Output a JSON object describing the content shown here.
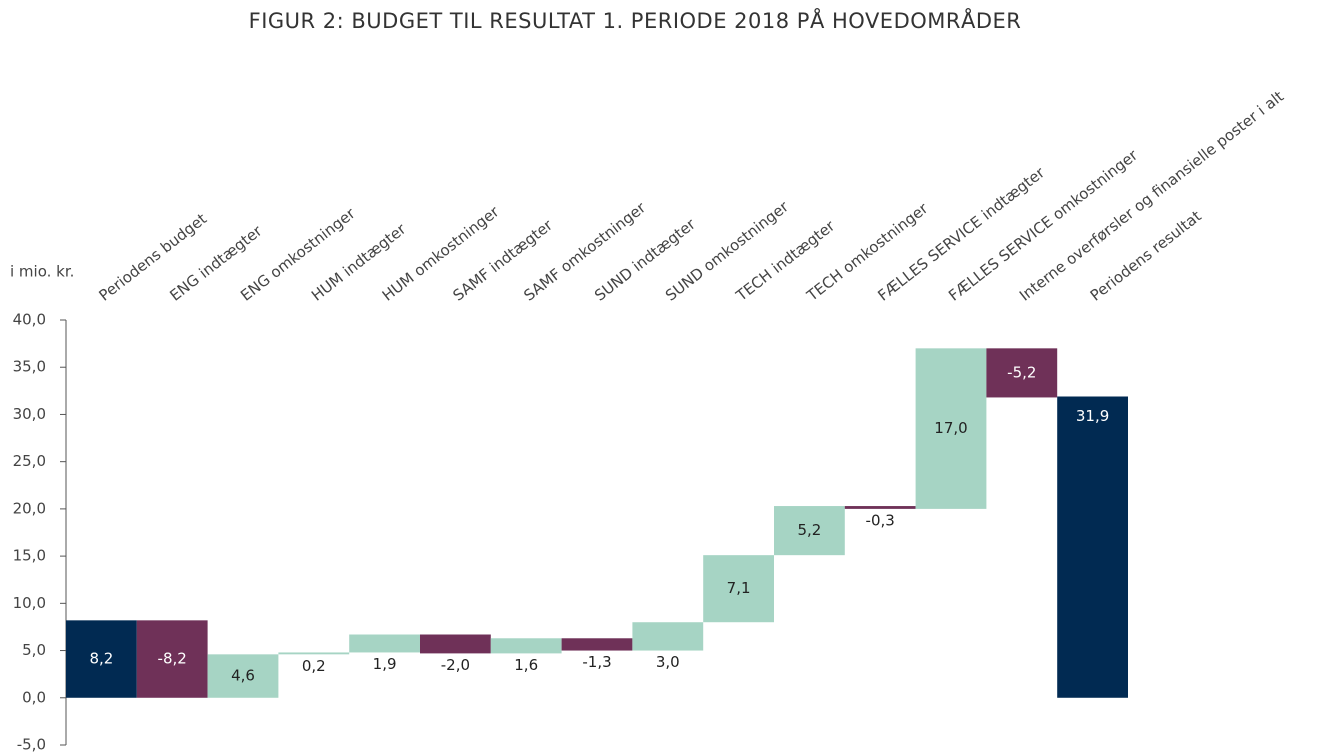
{
  "chart_data": {
    "type": "waterfall",
    "title": "FIGUR 2: BUDGET TIL RESULTAT 1. PERIODE 2018 PÅ HOVEDOMRÅDER",
    "y_label": "i mio. kr.",
    "categories": [
      "Periodens budget",
      "ENG indtægter",
      "ENG omkostninger",
      "HUM indtægter",
      "HUM omkostninger",
      "SAMF indtægter",
      "SAMF omkostninger",
      "SUND indtægter",
      "SUND omkostninger",
      "TECH indtægter",
      "TECH omkostninger",
      "FÆLLES SERVICE indtægter",
      "FÆLLES SERVICE omkostninger",
      "Interne overførsler og finansielle poster i alt",
      "Periodens resultat"
    ],
    "values": [
      8.2,
      -8.2,
      4.6,
      0.2,
      1.9,
      -2.0,
      1.6,
      -1.3,
      3.0,
      7.1,
      5.2,
      -0.3,
      17.0,
      -5.2,
      31.9
    ],
    "value_labels": [
      "8,2",
      "-8,2",
      "4,6",
      "0,2",
      "1,9",
      "-2,0",
      "1,6",
      "-1,3",
      "3,0",
      "7,1",
      "5,2",
      "-0,3",
      "17,0",
      "-5,2",
      "31,9"
    ],
    "measure": [
      "total",
      "relative",
      "relative",
      "relative",
      "relative",
      "relative",
      "relative",
      "relative",
      "relative",
      "relative",
      "relative",
      "relative",
      "relative",
      "relative",
      "total"
    ],
    "colors": {
      "total": "#012a52",
      "increase": "#a6d4c4",
      "decrease": "#6f3158"
    },
    "ylim": [
      -5,
      40
    ],
    "yticks": [
      {
        "value": -5,
        "label": "-5,0"
      },
      {
        "value": 0,
        "label": "0,0"
      },
      {
        "value": 5,
        "label": "5,0"
      },
      {
        "value": 10,
        "label": "10,0"
      },
      {
        "value": 15,
        "label": "15,0"
      },
      {
        "value": 20,
        "label": "20,0"
      },
      {
        "value": 25,
        "label": "25,0"
      },
      {
        "value": 30,
        "label": "30,0"
      },
      {
        "value": 35,
        "label": "35,0"
      },
      {
        "value": 40,
        "label": "40,0"
      }
    ]
  }
}
